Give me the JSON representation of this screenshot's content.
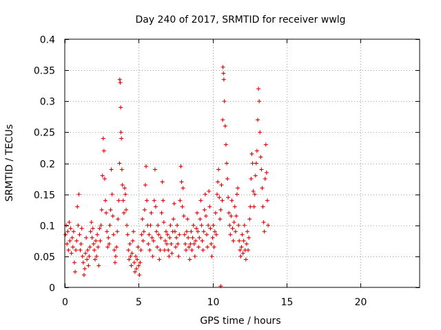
{
  "chart_data": {
    "type": "scatter",
    "title": "Day 240 of 2017, SRMTID for receiver wwlg",
    "xlabel": "GPS time / hours",
    "ylabel": "SRMTID / TECUs",
    "xlim": [
      0,
      24
    ],
    "ylim": [
      0,
      0.4
    ],
    "xticks": [
      0,
      5,
      10,
      15,
      20
    ],
    "yticks": [
      0,
      0.05,
      0.1,
      0.15,
      0.2,
      0.25,
      0.3,
      0.35,
      0.4
    ],
    "xtick_labels": [
      "0",
      "5",
      "10",
      "15",
      "20"
    ],
    "ytick_labels": [
      "0",
      "0.05",
      "0.1",
      "0.15",
      "0.2",
      "0.25",
      "0.3",
      "0.35",
      "0.4"
    ],
    "grid": true,
    "marker": "+",
    "color": "#dd0000",
    "series": [
      {
        "name": "SRMTID",
        "points": [
          [
            0.05,
            0.085
          ],
          [
            0.1,
            0.1
          ],
          [
            0.15,
            0.07
          ],
          [
            0.2,
            0.09
          ],
          [
            0.25,
            0.06
          ],
          [
            0.3,
            0.105
          ],
          [
            0.35,
            0.075
          ],
          [
            0.4,
            0.095
          ],
          [
            0.45,
            0.055
          ],
          [
            0.5,
            0.08
          ],
          [
            0.55,
            0.065
          ],
          [
            0.6,
            0.09
          ],
          [
            0.65,
            0.04
          ],
          [
            0.7,
            0.025
          ],
          [
            0.75,
            0.06
          ],
          [
            0.8,
            0.075
          ],
          [
            0.85,
            0.13
          ],
          [
            0.9,
            0.1
          ],
          [
            0.95,
            0.15
          ],
          [
            1.0,
            0.085
          ],
          [
            1.05,
            0.06
          ],
          [
            1.1,
            0.07
          ],
          [
            1.15,
            0.095
          ],
          [
            1.2,
            0.05
          ],
          [
            1.25,
            0.04
          ],
          [
            1.3,
            0.02
          ],
          [
            1.35,
            0.03
          ],
          [
            1.4,
            0.055
          ],
          [
            1.45,
            0.08
          ],
          [
            1.5,
            0.045
          ],
          [
            1.55,
            0.06
          ],
          [
            1.6,
            0.035
          ],
          [
            1.65,
            0.05
          ],
          [
            1.7,
            0.065
          ],
          [
            1.75,
            0.09
          ],
          [
            1.8,
            0.105
          ],
          [
            1.85,
            0.08
          ],
          [
            1.9,
            0.095
          ],
          [
            1.95,
            0.07
          ],
          [
            2.0,
            0.06
          ],
          [
            2.05,
            0.045
          ],
          [
            2.1,
            0.075
          ],
          [
            2.15,
            0.05
          ],
          [
            2.2,
            0.085
          ],
          [
            2.25,
            0.065
          ],
          [
            2.3,
            0.035
          ],
          [
            2.35,
            0.095
          ],
          [
            2.4,
            0.075
          ],
          [
            2.45,
            0.1
          ],
          [
            2.5,
            0.125
          ],
          [
            2.55,
            0.18
          ],
          [
            2.6,
            0.24
          ],
          [
            2.65,
            0.22
          ],
          [
            2.7,
            0.175
          ],
          [
            2.75,
            0.14
          ],
          [
            2.8,
            0.12
          ],
          [
            2.85,
            0.09
          ],
          [
            2.9,
            0.065
          ],
          [
            2.95,
            0.08
          ],
          [
            3.0,
            0.07
          ],
          [
            3.05,
            0.1
          ],
          [
            3.1,
            0.125
          ],
          [
            3.15,
            0.19
          ],
          [
            3.2,
            0.15
          ],
          [
            3.25,
            0.115
          ],
          [
            3.3,
            0.085
          ],
          [
            3.35,
            0.06
          ],
          [
            3.4,
            0.04
          ],
          [
            3.45,
            0.05
          ],
          [
            3.5,
            0.065
          ],
          [
            3.55,
            0.09
          ],
          [
            3.6,
            0.11
          ],
          [
            3.65,
            0.14
          ],
          [
            3.7,
            0.2
          ],
          [
            3.72,
            0.335
          ],
          [
            3.75,
            0.33
          ],
          [
            3.78,
            0.29
          ],
          [
            3.8,
            0.25
          ],
          [
            3.83,
            0.24
          ],
          [
            3.86,
            0.19
          ],
          [
            3.9,
            0.165
          ],
          [
            3.95,
            0.14
          ],
          [
            4.0,
            0.12
          ],
          [
            4.05,
            0.16
          ],
          [
            4.1,
            0.15
          ],
          [
            4.15,
            0.125
          ],
          [
            4.2,
            0.1
          ],
          [
            4.25,
            0.085
          ],
          [
            4.3,
            0.06
          ],
          [
            4.35,
            0.045
          ],
          [
            4.4,
            0.07
          ],
          [
            4.45,
            0.05
          ],
          [
            4.5,
            0.035
          ],
          [
            4.55,
            0.055
          ],
          [
            4.6,
            0.075
          ],
          [
            4.65,
            0.09
          ],
          [
            4.7,
            0.04
          ],
          [
            4.75,
            0.025
          ],
          [
            4.8,
            0.05
          ],
          [
            4.85,
            0.03
          ],
          [
            4.9,
            0.045
          ],
          [
            4.95,
            0.065
          ],
          [
            5.0,
            0.035
          ],
          [
            5.05,
            0.02
          ],
          [
            5.1,
            0.04
          ],
          [
            5.15,
            0.06
          ],
          [
            5.2,
            0.085
          ],
          [
            5.25,
            0.11
          ],
          [
            5.3,
            0.075
          ],
          [
            5.35,
            0.09
          ],
          [
            5.4,
            0.125
          ],
          [
            5.45,
            0.165
          ],
          [
            5.5,
            0.195
          ],
          [
            5.55,
            0.14
          ],
          [
            5.6,
            0.1
          ],
          [
            5.65,
            0.07
          ],
          [
            5.7,
            0.085
          ],
          [
            5.75,
            0.06
          ],
          [
            5.8,
            0.1
          ],
          [
            5.85,
            0.12
          ],
          [
            5.9,
            0.08
          ],
          [
            5.95,
            0.05
          ],
          [
            6.0,
            0.075
          ],
          [
            6.05,
            0.14
          ],
          [
            6.1,
            0.19
          ],
          [
            6.15,
            0.13
          ],
          [
            6.2,
            0.09
          ],
          [
            6.25,
            0.065
          ],
          [
            6.3,
            0.1
          ],
          [
            6.35,
            0.085
          ],
          [
            6.4,
            0.045
          ],
          [
            6.45,
            0.06
          ],
          [
            6.5,
            0.08
          ],
          [
            6.55,
            0.12
          ],
          [
            6.6,
            0.17
          ],
          [
            6.65,
            0.14
          ],
          [
            6.7,
            0.105
          ],
          [
            6.75,
            0.06
          ],
          [
            6.8,
            0.075
          ],
          [
            6.85,
            0.09
          ],
          [
            6.9,
            0.07
          ],
          [
            6.95,
            0.085
          ],
          [
            7.0,
            0.06
          ],
          [
            7.05,
            0.05
          ],
          [
            7.1,
            0.08
          ],
          [
            7.15,
            0.1
          ],
          [
            7.2,
            0.07
          ],
          [
            7.25,
            0.055
          ],
          [
            7.3,
            0.09
          ],
          [
            7.35,
            0.11
          ],
          [
            7.4,
            0.135
          ],
          [
            7.45,
            0.09
          ],
          [
            7.5,
            0.065
          ],
          [
            7.55,
            0.08
          ],
          [
            7.6,
            0.1
          ],
          [
            7.65,
            0.07
          ],
          [
            7.7,
            0.05
          ],
          [
            7.75,
            0.085
          ],
          [
            7.8,
            0.14
          ],
          [
            7.85,
            0.195
          ],
          [
            7.9,
            0.17
          ],
          [
            7.95,
            0.13
          ],
          [
            8.0,
            0.16
          ],
          [
            8.05,
            0.115
          ],
          [
            8.1,
            0.085
          ],
          [
            8.15,
            0.07
          ],
          [
            8.2,
            0.06
          ],
          [
            8.25,
            0.09
          ],
          [
            8.3,
            0.11
          ],
          [
            8.35,
            0.08
          ],
          [
            8.4,
            0.065
          ],
          [
            8.45,
            0.045
          ],
          [
            8.5,
            0.07
          ],
          [
            8.55,
            0.09
          ],
          [
            8.6,
            0.06
          ],
          [
            8.65,
            0.08
          ],
          [
            8.7,
            0.1
          ],
          [
            8.75,
            0.07
          ],
          [
            8.8,
            0.05
          ],
          [
            8.85,
            0.075
          ],
          [
            8.9,
            0.095
          ],
          [
            8.95,
            0.12
          ],
          [
            9.0,
            0.09
          ],
          [
            9.05,
            0.065
          ],
          [
            9.1,
            0.08
          ],
          [
            9.15,
            0.11
          ],
          [
            9.2,
            0.14
          ],
          [
            9.25,
            0.1
          ],
          [
            9.3,
            0.075
          ],
          [
            9.35,
            0.06
          ],
          [
            9.4,
            0.09
          ],
          [
            9.45,
            0.125
          ],
          [
            9.5,
            0.15
          ],
          [
            9.55,
            0.115
          ],
          [
            9.6,
            0.085
          ],
          [
            9.65,
            0.065
          ],
          [
            9.7,
            0.1
          ],
          [
            9.75,
            0.155
          ],
          [
            9.8,
            0.13
          ],
          [
            9.85,
            0.095
          ],
          [
            9.9,
            0.07
          ],
          [
            9.95,
            0.05
          ],
          [
            10.0,
            0.08
          ],
          [
            10.05,
            0.1
          ],
          [
            10.1,
            0.065
          ],
          [
            10.15,
            0.09
          ],
          [
            10.2,
            0.12
          ],
          [
            10.25,
            0.085
          ],
          [
            10.3,
            0.15
          ],
          [
            10.35,
            0.17
          ],
          [
            10.4,
            0.19
          ],
          [
            10.45,
            0.145
          ],
          [
            10.5,
            0.11
          ],
          [
            10.55,
            0.125
          ],
          [
            10.6,
            0.165
          ],
          [
            10.65,
            0.14
          ],
          [
            10.68,
            0.27
          ],
          [
            10.7,
            0.355
          ],
          [
            10.73,
            0.345
          ],
          [
            10.76,
            0.335
          ],
          [
            10.8,
            0.3
          ],
          [
            10.85,
            0.26
          ],
          [
            10.9,
            0.23
          ],
          [
            10.95,
            0.2
          ],
          [
            11.0,
            0.175
          ],
          [
            11.05,
            0.145
          ],
          [
            11.1,
            0.12
          ],
          [
            11.15,
            0.1
          ],
          [
            11.2,
            0.085
          ],
          [
            11.25,
            0.115
          ],
          [
            11.3,
            0.14
          ],
          [
            11.35,
            0.095
          ],
          [
            11.4,
            0.075
          ],
          [
            11.45,
            0.105
          ],
          [
            11.5,
            0.13
          ],
          [
            11.55,
            0.09
          ],
          [
            11.6,
            0.115
          ],
          [
            11.65,
            0.15
          ],
          [
            11.7,
            0.16
          ],
          [
            11.75,
            0.1
          ],
          [
            11.8,
            0.075
          ],
          [
            11.85,
            0.06
          ],
          [
            11.9,
            0.05
          ],
          [
            11.95,
            0.065
          ],
          [
            12.0,
            0.085
          ],
          [
            12.05,
            0.055
          ],
          [
            12.1,
            0.075
          ],
          [
            12.15,
            0.1
          ],
          [
            12.2,
            0.06
          ],
          [
            12.25,
            0.045
          ],
          [
            12.3,
            0.07
          ],
          [
            12.35,
            0.09
          ],
          [
            12.4,
            0.06
          ],
          [
            12.45,
            0.08
          ],
          [
            12.5,
            0.11
          ],
          [
            12.55,
            0.13
          ],
          [
            12.6,
            0.175
          ],
          [
            12.65,
            0.215
          ],
          [
            12.7,
            0.2
          ],
          [
            12.75,
            0.155
          ],
          [
            12.8,
            0.13
          ],
          [
            12.85,
            0.15
          ],
          [
            12.9,
            0.18
          ],
          [
            12.95,
            0.2
          ],
          [
            13.0,
            0.22
          ],
          [
            13.05,
            0.27
          ],
          [
            13.1,
            0.32
          ],
          [
            13.15,
            0.3
          ],
          [
            13.2,
            0.25
          ],
          [
            13.25,
            0.21
          ],
          [
            13.3,
            0.19
          ],
          [
            13.35,
            0.16
          ],
          [
            13.4,
            0.13
          ],
          [
            13.45,
            0.105
          ],
          [
            13.5,
            0.09
          ],
          [
            13.55,
            0.175
          ],
          [
            13.6,
            0.23
          ],
          [
            13.65,
            0.185
          ],
          [
            13.7,
            0.14
          ],
          [
            13.75,
            0.1
          ],
          [
            10.55,
            0.002
          ]
        ]
      }
    ]
  }
}
